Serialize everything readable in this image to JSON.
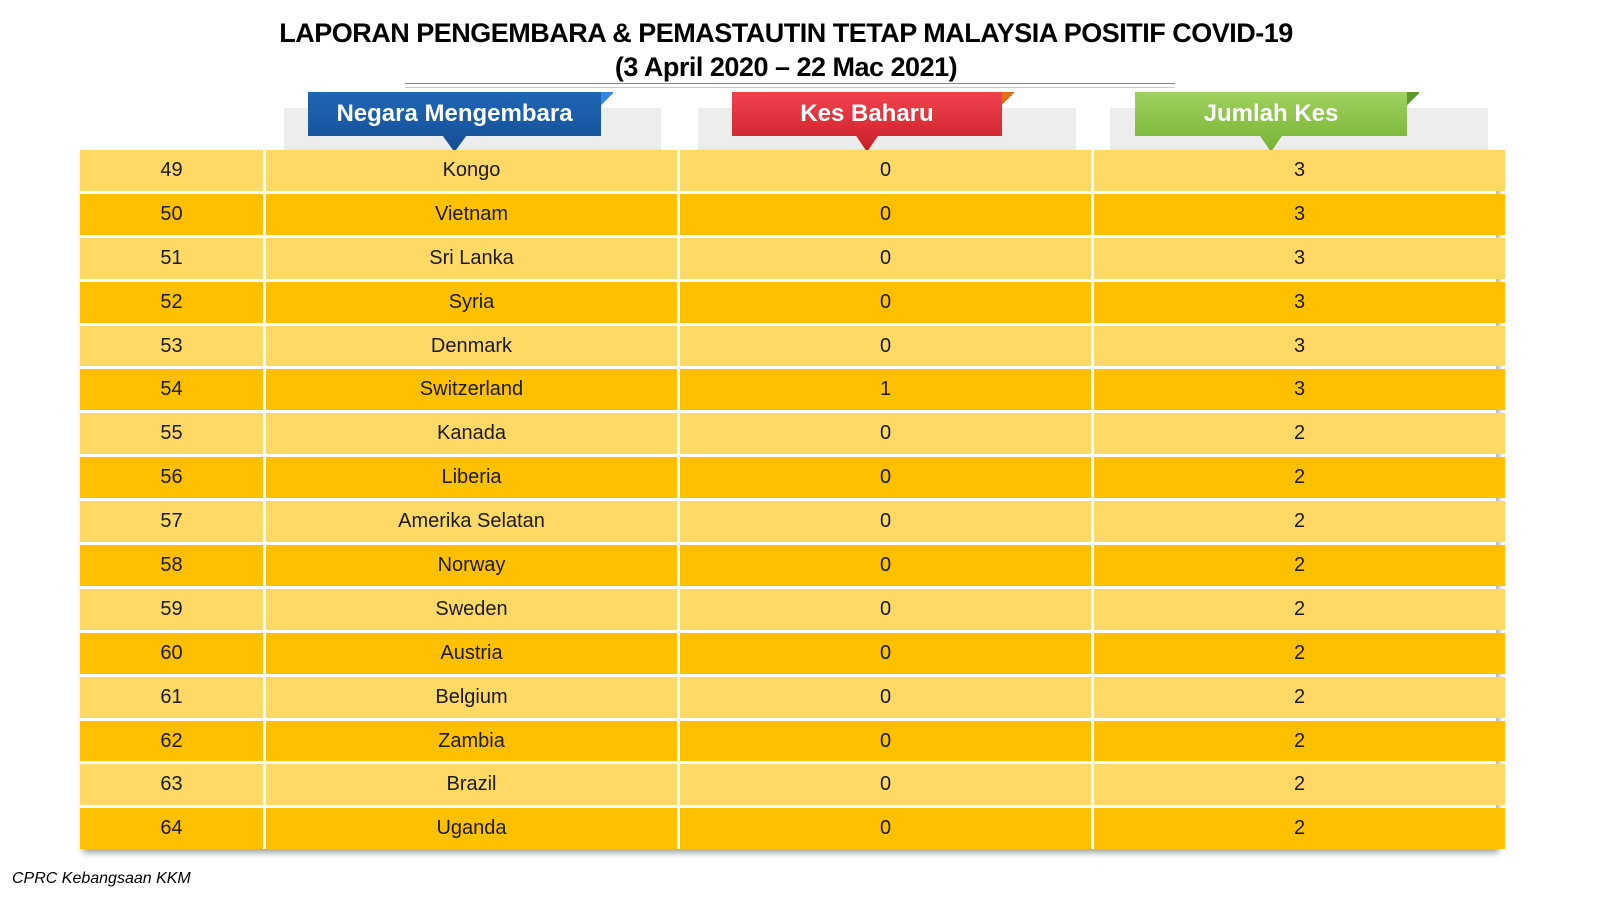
{
  "title_line1": "LAPORAN PENGEMBARA & PEMASTAUTIN TETAP MALAYSIA POSITIF COVID-19",
  "title_line2": "(3 April 2020 – 22 Mac 2021)",
  "headers": {
    "country": "Negara Mengembara",
    "new_cases": "Kes Baharu",
    "total_cases": "Jumlah Kes"
  },
  "colors": {
    "row_light": "#ffd966",
    "row_dark": "#ffc000",
    "header_blue": "#1a5aa5",
    "header_red": "#e0303a",
    "header_green": "#8cc44a"
  },
  "rows": [
    {
      "no": "49",
      "country": "Kongo",
      "new": "0",
      "total": "3"
    },
    {
      "no": "50",
      "country": "Vietnam",
      "new": "0",
      "total": "3"
    },
    {
      "no": "51",
      "country": "Sri Lanka",
      "new": "0",
      "total": "3"
    },
    {
      "no": "52",
      "country": "Syria",
      "new": "0",
      "total": "3"
    },
    {
      "no": "53",
      "country": "Denmark",
      "new": "0",
      "total": "3"
    },
    {
      "no": "54",
      "country": "Switzerland",
      "new": "1",
      "total": "3"
    },
    {
      "no": "55",
      "country": "Kanada",
      "new": "0",
      "total": "2"
    },
    {
      "no": "56",
      "country": "Liberia",
      "new": "0",
      "total": "2"
    },
    {
      "no": "57",
      "country": "Amerika Selatan",
      "new": "0",
      "total": "2"
    },
    {
      "no": "58",
      "country": "Norway",
      "new": "0",
      "total": "2"
    },
    {
      "no": "59",
      "country": "Sweden",
      "new": "0",
      "total": "2"
    },
    {
      "no": "60",
      "country": "Austria",
      "new": "0",
      "total": "2"
    },
    {
      "no": "61",
      "country": "Belgium",
      "new": "0",
      "total": "2"
    },
    {
      "no": "62",
      "country": "Zambia",
      "new": "0",
      "total": "2"
    },
    {
      "no": "63",
      "country": "Brazil",
      "new": "0",
      "total": "2"
    },
    {
      "no": "64",
      "country": "Uganda",
      "new": "0",
      "total": "2"
    }
  ],
  "footer": "CPRC Kebangsaan KKM"
}
